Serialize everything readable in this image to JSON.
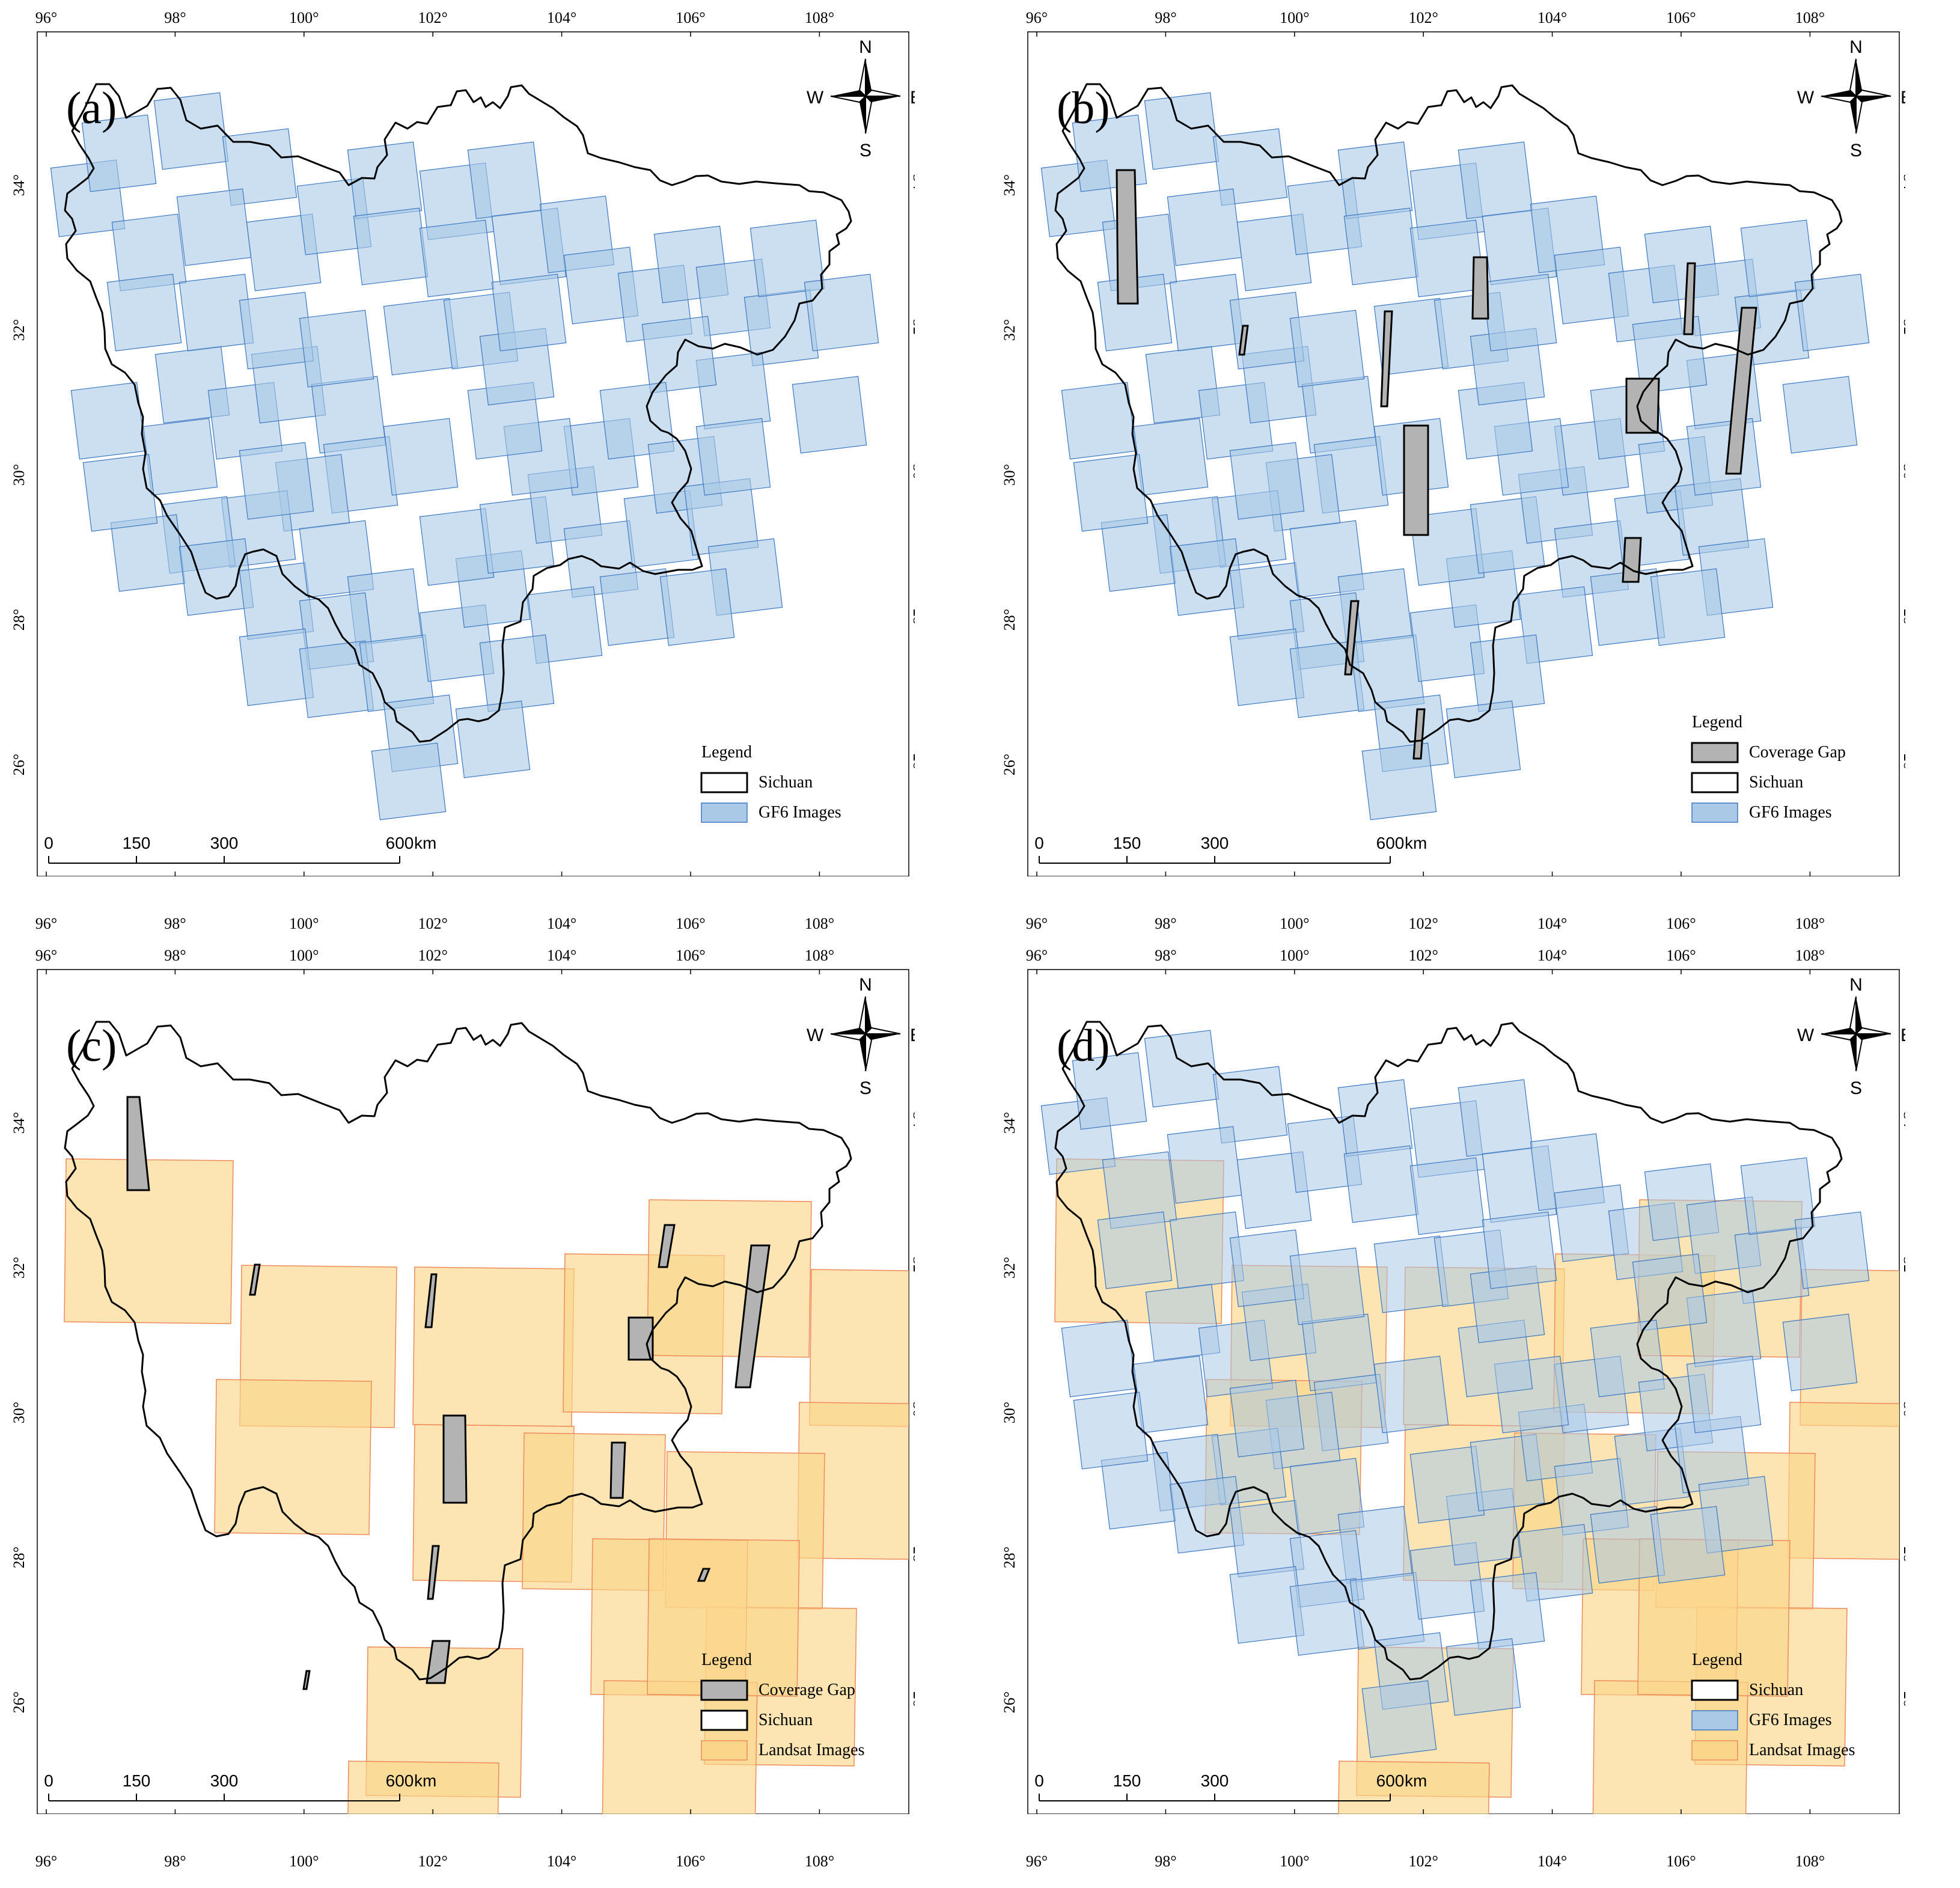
{
  "figure": {
    "panels": [
      {
        "id": "a",
        "label": "(a)",
        "legend": {
          "title": "Legend",
          "items": [
            {
              "kind": "boundary",
              "label": "Sichuan"
            },
            {
              "kind": "gf6",
              "label": "GF6 Images"
            }
          ]
        },
        "layers": [
          "gf6"
        ],
        "gaps": "gf6_only"
      },
      {
        "id": "b",
        "label": "(b)",
        "legend": {
          "title": "Legend",
          "items": [
            {
              "kind": "gap",
              "label": "Coverage Gap"
            },
            {
              "kind": "boundary",
              "label": "Sichuan"
            },
            {
              "kind": "gf6",
              "label": "GF6 Images"
            }
          ]
        },
        "layers": [
          "gf6",
          "gap"
        ],
        "gaps": "gf6_only"
      },
      {
        "id": "c",
        "label": "(c)",
        "legend": {
          "title": "Legend",
          "items": [
            {
              "kind": "gap",
              "label": "Coverage Gap"
            },
            {
              "kind": "boundary",
              "label": "Sichuan"
            },
            {
              "kind": "landsat",
              "label": "Landsat Images"
            }
          ]
        },
        "layers": [
          "landsat",
          "gap"
        ],
        "gaps": "landsat_only"
      },
      {
        "id": "d",
        "label": "(d)",
        "legend": {
          "title": "Legend",
          "items": [
            {
              "kind": "boundary",
              "label": "Sichuan"
            },
            {
              "kind": "gf6",
              "label": "GF6 Images"
            },
            {
              "kind": "landsat",
              "label": "Landsat Images"
            }
          ]
        },
        "layers": [
          "landsat",
          "gf6"
        ],
        "gaps": "none"
      }
    ],
    "lon_ticks": [
      "96°",
      "98°",
      "100°",
      "102°",
      "104°",
      "106°",
      "108°"
    ],
    "lon_values": [
      96,
      98,
      100,
      102,
      104,
      106,
      108
    ],
    "lat_ticks": [
      "26°",
      "28°",
      "30°",
      "32°",
      "34°"
    ],
    "lat_values": [
      26,
      28,
      30,
      32,
      34
    ],
    "scale_bar": {
      "labels": [
        "0",
        "150",
        "300",
        "600"
      ],
      "values": [
        0,
        150,
        300,
        600
      ],
      "unit": "km"
    },
    "north_arrow": {
      "n": "N",
      "s": "S",
      "e": "E",
      "w": "W"
    },
    "colors": {
      "gf6_fill": "#a9c9e6",
      "gf6_stroke": "#3f78c0",
      "landsat_fill": "#fbd58a",
      "landsat_stroke": "#ef8a5a",
      "gap_fill": "#b3b3b3",
      "boundary": "#000000"
    }
  }
}
